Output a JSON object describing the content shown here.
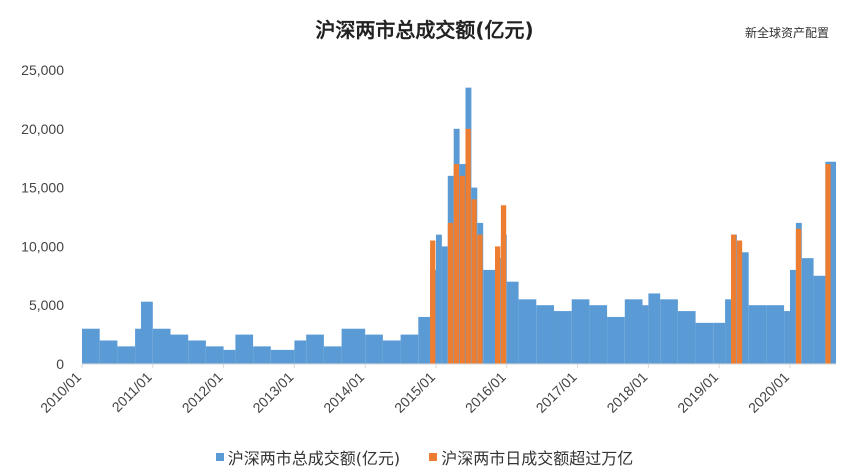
{
  "title": "沪深两市总成交额(亿元)",
  "watermark": "新全球资产配置",
  "colors": {
    "total": "#5b9bd5",
    "over": "#ed7d31",
    "axis": "#d9d9d9"
  },
  "chart_data": {
    "type": "bar",
    "title": "沪深两市总成交额(亿元)",
    "xlabel": "",
    "ylabel": "",
    "ylim": [
      0,
      25000
    ],
    "yticks": [
      "0",
      "5,000",
      "10,000",
      "15,000",
      "20,000",
      "25,000"
    ],
    "xticks": [
      "2010/01",
      "2011/01",
      "2012/01",
      "2013/01",
      "2014/01",
      "2015/01",
      "2016/01",
      "2017/01",
      "2018/01",
      "2019/01",
      "2020/01"
    ],
    "grid": false,
    "legend_position": "bottom",
    "series": [
      {
        "name": "沪深两市总成交额(亿元)",
        "color": "#5b9bd5",
        "x": [
          "2010/01",
          "2010/04",
          "2010/07",
          "2010/10",
          "2010/11",
          "2011/01",
          "2011/04",
          "2011/07",
          "2011/10",
          "2012/01",
          "2012/03",
          "2012/06",
          "2012/09",
          "2013/01",
          "2013/03",
          "2013/06",
          "2013/09",
          "2014/01",
          "2014/04",
          "2014/07",
          "2014/10",
          "2014/12",
          "2015/01",
          "2015/02",
          "2015/03",
          "2015/04",
          "2015/05",
          "2015/06",
          "2015/07",
          "2015/08",
          "2015/09",
          "2015/11",
          "2015/12",
          "2016/01",
          "2016/03",
          "2016/06",
          "2016/09",
          "2016/12",
          "2017/03",
          "2017/06",
          "2017/09",
          "2017/12",
          "2018/01",
          "2018/03",
          "2018/06",
          "2018/09",
          "2018/12",
          "2019/02",
          "2019/03",
          "2019/04",
          "2019/06",
          "2019/09",
          "2019/12",
          "2020/01",
          "2020/02",
          "2020/03",
          "2020/05",
          "2020/07"
        ],
        "values": [
          3000,
          2000,
          1500,
          3000,
          5300,
          3000,
          2500,
          2000,
          1500,
          1200,
          2500,
          1500,
          1200,
          2000,
          2500,
          1500,
          3000,
          2500,
          2000,
          2500,
          4000,
          8000,
          11000,
          10000,
          16000,
          20000,
          17000,
          23500,
          15000,
          12000,
          8000,
          9000,
          11000,
          7000,
          5500,
          5000,
          4500,
          5500,
          5000,
          4000,
          5500,
          5000,
          6000,
          5500,
          4500,
          3500,
          3500,
          5500,
          11000,
          9500,
          5000,
          5000,
          4500,
          8000,
          12000,
          9000,
          7500,
          17200
        ]
      },
      {
        "name": "沪深两市日成交额超过万亿",
        "color": "#ed7d31",
        "x": [
          "2014/12",
          "2015/03",
          "2015/04",
          "2015/05",
          "2015/06",
          "2015/07",
          "2015/08",
          "2015/11",
          "2015/12",
          "2019/03",
          "2019/04",
          "2020/02",
          "2020/07"
        ],
        "values": [
          10500,
          12000,
          17000,
          16000,
          20000,
          14000,
          11000,
          10000,
          13500,
          11000,
          10500,
          11500,
          17000
        ]
      }
    ]
  }
}
